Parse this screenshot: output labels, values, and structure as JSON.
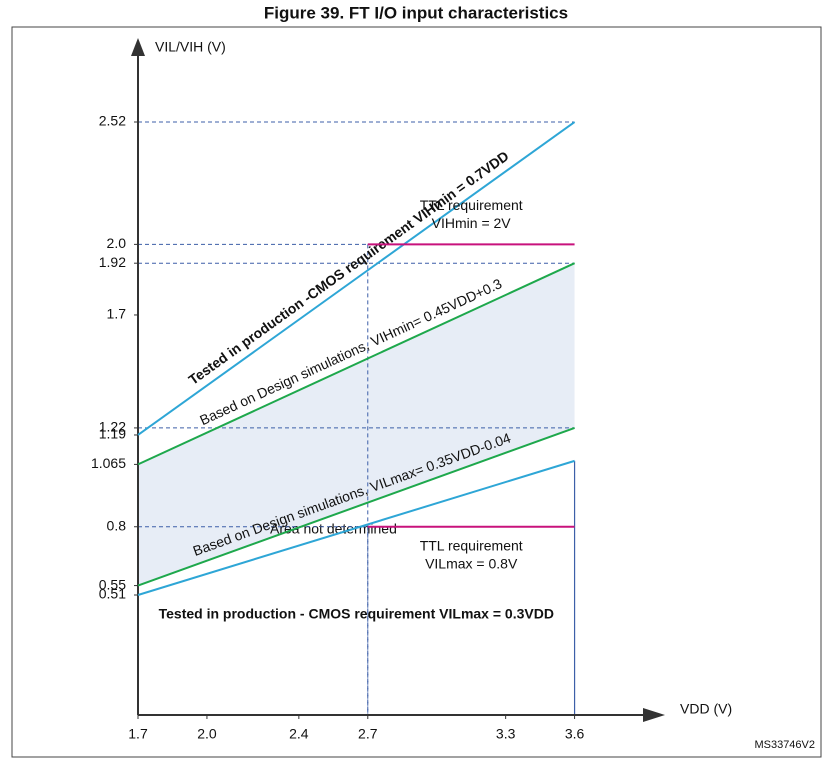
{
  "chart_data": {
    "type": "line",
    "title": "Figure 39. FT I/O input characteristics",
    "x_label": "VDD (V)",
    "y_label": "VIL/VIH (V)",
    "figure_id": "MS33746V2",
    "xlim": [
      1.7,
      3.95
    ],
    "ylim": [
      0,
      2.86
    ],
    "xticks": [
      1.7,
      {
        "value": 2,
        "label": "2.0"
      },
      2.4,
      2.7,
      3.3,
      3.6
    ],
    "yticks": [
      0.51,
      0.55,
      0.8,
      1.065,
      1.19,
      1.22,
      1.7,
      1.92,
      {
        "value": 2,
        "label": "2.0"
      },
      2.52
    ],
    "shaded": {
      "between": [
        1,
        2
      ],
      "color": "#e7edf6",
      "label": "Area not determined"
    },
    "series": [
      {
        "name": [
          "Tested in production  -CMOS requirement VIHmin = 0.7VDD"
        ],
        "color": "#2ea6d6",
        "x": [
          1.7,
          3.6
        ],
        "values": [
          1.19,
          2.52
        ],
        "label_position": "along",
        "bold": true,
        "guide_end": true
      },
      {
        "name": [
          "Based on Design simulations, VIHmin= 0.45VDD+0.3"
        ],
        "color": "#1ea84c",
        "x": [
          1.7,
          3.6
        ],
        "values": [
          1.065,
          1.92
        ],
        "label_position": "along",
        "bold": false,
        "guide_end": true
      },
      {
        "name": [
          "Based on Design simulations, VILmax= 0.35VDD-0.04"
        ],
        "color": "#1ea84c",
        "x": [
          1.7,
          3.6
        ],
        "values": [
          0.55,
          1.22
        ],
        "label_position": "along",
        "bold": false,
        "guide_end": true
      },
      {
        "name": [
          "Tested in production  - CMOS requirement VILmax = 0.3VDD"
        ],
        "color": "#2ea6d6",
        "x": [
          1.7,
          3.6
        ],
        "values": [
          0.51,
          1.08
        ],
        "label_position": "below",
        "bold": true,
        "guide_end": false,
        "drop": true
      },
      {
        "name": [
          "TTL requirement",
          "VIHmin = 2V"
        ],
        "color": "#c8127c",
        "x": [
          2.7,
          3.6
        ],
        "values": [
          2,
          2
        ],
        "label_position": "above",
        "bold": false,
        "guide_end": false
      },
      {
        "name": [
          "TTL requirement",
          "VILmax = 0.8V"
        ],
        "color": "#c8127c",
        "x": [
          2.7,
          3.6
        ],
        "values": [
          0.8,
          0.8
        ],
        "label_position": "below",
        "bold": false,
        "guide_end": false
      }
    ]
  }
}
